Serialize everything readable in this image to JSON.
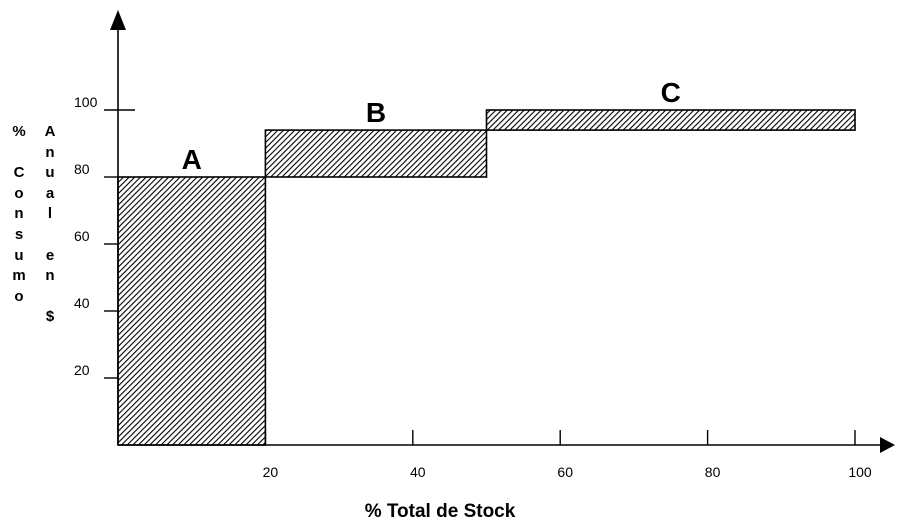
{
  "chart_data": {
    "type": "bar",
    "xlabel": "% Total de Stock",
    "ylabel": {
      "column_left": [
        "%",
        "",
        "C",
        "o",
        "n",
        "s",
        "u",
        "m",
        "o"
      ],
      "column_right": [
        "A",
        "n",
        "u",
        "a",
        "l",
        "",
        "e",
        "n",
        "",
        "$"
      ]
    },
    "x_ticks": [
      20,
      40,
      60,
      80,
      100
    ],
    "y_ticks": [
      20,
      40,
      60,
      80,
      100
    ],
    "xlim": [
      0,
      100
    ],
    "ylim": [
      0,
      100
    ],
    "bars": [
      {
        "label": "A",
        "x0": 0,
        "x1": 20,
        "y0": 0,
        "y1": 80
      },
      {
        "label": "B",
        "x0": 20,
        "x1": 50,
        "y0": 80,
        "y1": 94
      },
      {
        "label": "C",
        "x0": 50,
        "x1": 100,
        "y0": 94,
        "y1": 100
      }
    ],
    "fill": "hatched",
    "colors": {
      "stroke": "#000000",
      "background": "#ffffff"
    }
  }
}
